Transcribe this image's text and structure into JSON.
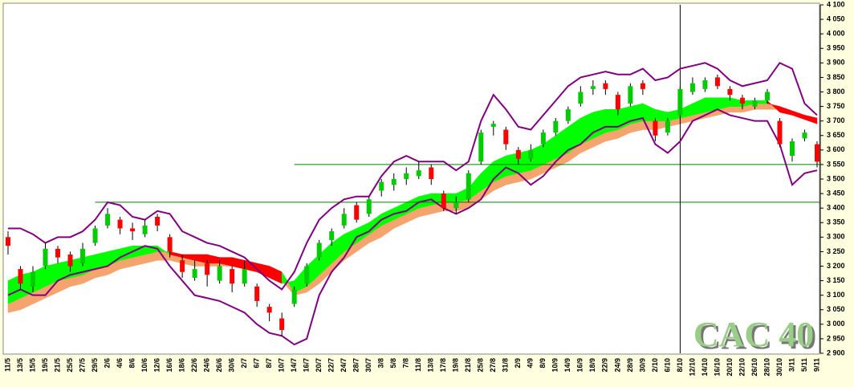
{
  "chart_data": {
    "type": "candlestick",
    "categories": [
      "11/5",
      "13/5",
      "15/5",
      "19/5",
      "21/5",
      "25/5",
      "27/5",
      "29/5",
      "2/6",
      "4/6",
      "8/6",
      "10/6",
      "12/6",
      "16/6",
      "18/6",
      "22/6",
      "24/6",
      "26/6",
      "30/6",
      "2/7",
      "6/7",
      "8/7",
      "10/7",
      "14/7",
      "16/7",
      "20/7",
      "22/7",
      "24/7",
      "28/7",
      "30/7",
      "3/8",
      "5/8",
      "7/8",
      "11/8",
      "13/8",
      "17/8",
      "19/8",
      "21/8",
      "25/8",
      "27/8",
      "31/8",
      "2/9",
      "4/9",
      "8/9",
      "10/9",
      "14/9",
      "16/9",
      "18/9",
      "22/9",
      "24/9",
      "28/9",
      "30/9",
      "2/10",
      "6/10",
      "8/10",
      "12/10",
      "14/10",
      "16/10",
      "20/10",
      "22/10",
      "26/10",
      "28/10",
      "30/10",
      "3/11",
      "5/11",
      "9/11"
    ],
    "ohlc": [
      [
        3300,
        3320,
        3240,
        3270
      ],
      [
        3190,
        3200,
        3120,
        3140
      ],
      [
        3130,
        3200,
        3110,
        3180
      ],
      [
        3200,
        3280,
        3190,
        3260
      ],
      [
        3260,
        3270,
        3210,
        3230
      ],
      [
        3240,
        3250,
        3180,
        3200
      ],
      [
        3210,
        3280,
        3200,
        3260
      ],
      [
        3280,
        3340,
        3270,
        3330
      ],
      [
        3340,
        3400,
        3330,
        3380
      ],
      [
        3360,
        3370,
        3310,
        3330
      ],
      [
        3330,
        3350,
        3290,
        3320
      ],
      [
        3310,
        3360,
        3300,
        3340
      ],
      [
        3370,
        3380,
        3320,
        3340
      ],
      [
        3300,
        3310,
        3230,
        3250
      ],
      [
        3220,
        3240,
        3160,
        3180
      ],
      [
        3160,
        3220,
        3150,
        3190
      ],
      [
        3210,
        3220,
        3130,
        3170
      ],
      [
        3150,
        3220,
        3140,
        3200
      ],
      [
        3190,
        3200,
        3110,
        3140
      ],
      [
        3140,
        3220,
        3130,
        3190
      ],
      [
        3130,
        3140,
        3060,
        3080
      ],
      [
        3060,
        3070,
        3010,
        3040
      ],
      [
        3020,
        3040,
        2960,
        2980
      ],
      [
        3070,
        3130,
        3060,
        3120
      ],
      [
        3140,
        3210,
        3130,
        3200
      ],
      [
        3230,
        3290,
        3220,
        3280
      ],
      [
        3290,
        3330,
        3270,
        3320
      ],
      [
        3340,
        3400,
        3330,
        3380
      ],
      [
        3410,
        3420,
        3350,
        3360
      ],
      [
        3380,
        3440,
        3370,
        3430
      ],
      [
        3460,
        3500,
        3440,
        3490
      ],
      [
        3480,
        3520,
        3460,
        3500
      ],
      [
        3500,
        3540,
        3480,
        3520
      ],
      [
        3510,
        3560,
        3500,
        3530
      ],
      [
        3540,
        3550,
        3480,
        3500
      ],
      [
        3450,
        3460,
        3390,
        3400
      ],
      [
        3400,
        3440,
        3380,
        3420
      ],
      [
        3430,
        3530,
        3420,
        3520
      ],
      [
        3560,
        3670,
        3550,
        3660
      ],
      [
        3680,
        3700,
        3650,
        3690
      ],
      [
        3670,
        3680,
        3600,
        3620
      ],
      [
        3600,
        3610,
        3550,
        3570
      ],
      [
        3570,
        3620,
        3560,
        3600
      ],
      [
        3620,
        3670,
        3610,
        3660
      ],
      [
        3660,
        3710,
        3650,
        3700
      ],
      [
        3700,
        3750,
        3690,
        3740
      ],
      [
        3760,
        3820,
        3750,
        3800
      ],
      [
        3810,
        3840,
        3790,
        3820
      ],
      [
        3830,
        3840,
        3790,
        3810
      ],
      [
        3790,
        3800,
        3720,
        3740
      ],
      [
        3760,
        3830,
        3750,
        3820
      ],
      [
        3830,
        3840,
        3790,
        3810
      ],
      [
        3700,
        3710,
        3630,
        3650
      ],
      [
        3660,
        3710,
        3650,
        3700
      ],
      [
        3720,
        3820,
        3710,
        3810
      ],
      [
        3800,
        3850,
        3790,
        3830
      ],
      [
        3810,
        3850,
        3800,
        3840
      ],
      [
        3850,
        3860,
        3810,
        3820
      ],
      [
        3810,
        3820,
        3770,
        3790
      ],
      [
        3780,
        3790,
        3740,
        3760
      ],
      [
        3750,
        3780,
        3740,
        3770
      ],
      [
        3770,
        3810,
        3760,
        3800
      ],
      [
        3700,
        3710,
        3610,
        3620
      ],
      [
        3580,
        3640,
        3560,
        3630
      ],
      [
        3640,
        3670,
        3630,
        3660
      ],
      [
        3620,
        3630,
        3540,
        3560
      ]
    ],
    "upper_band": [
      3330,
      3330,
      3310,
      3280,
      3300,
      3300,
      3320,
      3360,
      3420,
      3410,
      3370,
      3360,
      3390,
      3380,
      3320,
      3300,
      3280,
      3270,
      3250,
      3230,
      3190,
      3150,
      3120,
      3180,
      3280,
      3360,
      3400,
      3430,
      3440,
      3440,
      3510,
      3560,
      3580,
      3560,
      3560,
      3560,
      3530,
      3560,
      3700,
      3790,
      3740,
      3680,
      3670,
      3720,
      3770,
      3820,
      3850,
      3860,
      3870,
      3860,
      3860,
      3880,
      3840,
      3850,
      3880,
      3890,
      3900,
      3880,
      3840,
      3820,
      3830,
      3840,
      3900,
      3880,
      3760,
      3720
    ],
    "lower_band": [
      3100,
      3120,
      3100,
      3100,
      3150,
      3170,
      3180,
      3190,
      3200,
      3230,
      3250,
      3270,
      3260,
      3200,
      3150,
      3100,
      3090,
      3080,
      3060,
      3040,
      3000,
      2970,
      2960,
      2930,
      2950,
      3100,
      3180,
      3230,
      3300,
      3320,
      3360,
      3380,
      3390,
      3420,
      3430,
      3400,
      3380,
      3400,
      3430,
      3500,
      3540,
      3520,
      3480,
      3510,
      3560,
      3600,
      3620,
      3660,
      3680,
      3680,
      3700,
      3710,
      3620,
      3590,
      3630,
      3700,
      3720,
      3740,
      3720,
      3710,
      3700,
      3700,
      3620,
      3480,
      3520,
      3530
    ],
    "ma_fast": [
      3150,
      3170,
      3180,
      3200,
      3210,
      3220,
      3230,
      3240,
      3250,
      3260,
      3270,
      3270,
      3270,
      3240,
      3230,
      3220,
      3210,
      3210,
      3200,
      3190,
      3180,
      3160,
      3140,
      3150,
      3200,
      3240,
      3280,
      3310,
      3330,
      3350,
      3380,
      3400,
      3420,
      3440,
      3450,
      3450,
      3450,
      3470,
      3520,
      3560,
      3580,
      3590,
      3600,
      3620,
      3650,
      3680,
      3710,
      3730,
      3740,
      3740,
      3750,
      3760,
      3740,
      3730,
      3740,
      3760,
      3780,
      3780,
      3780,
      3770,
      3770,
      3770,
      3730,
      3720,
      3705,
      3690
    ],
    "ma_mid": [
      3070,
      3090,
      3110,
      3130,
      3150,
      3160,
      3170,
      3190,
      3200,
      3220,
      3230,
      3240,
      3250,
      3250,
      3240,
      3240,
      3240,
      3230,
      3230,
      3220,
      3210,
      3200,
      3180,
      3110,
      3130,
      3170,
      3210,
      3250,
      3280,
      3310,
      3340,
      3360,
      3380,
      3400,
      3410,
      3420,
      3420,
      3430,
      3460,
      3490,
      3510,
      3520,
      3530,
      3550,
      3570,
      3590,
      3620,
      3640,
      3660,
      3670,
      3690,
      3700,
      3700,
      3700,
      3710,
      3720,
      3730,
      3740,
      3750,
      3750,
      3760,
      3760,
      3750,
      3735,
      3720,
      3710
    ],
    "ma_slow": [
      3040,
      3050,
      3070,
      3090,
      3110,
      3130,
      3140,
      3160,
      3170,
      3190,
      3200,
      3210,
      3220,
      3220,
      3210,
      3200,
      3200,
      3200,
      3200,
      3190,
      3180,
      3170,
      3150,
      3100,
      3110,
      3140,
      3180,
      3220,
      3250,
      3280,
      3300,
      3330,
      3350,
      3370,
      3380,
      3390,
      3390,
      3400,
      3430,
      3460,
      3480,
      3490,
      3500,
      3520,
      3540,
      3560,
      3590,
      3610,
      3630,
      3640,
      3660,
      3670,
      3670,
      3680,
      3690,
      3700,
      3710,
      3720,
      3730,
      3730,
      3740,
      3740,
      3740,
      3730,
      3720,
      3710
    ],
    "up_color": "#00cc00",
    "down_color": "#ff0000",
    "band_color": "#800080",
    "ribbon_up_color": "#00ff00",
    "ribbon_down_color": "#ff0000",
    "ribbon_base_color": "#f4a46c",
    "hlines": [
      {
        "value": 3550,
        "from": "14/7",
        "color": "#008000"
      },
      {
        "value": 3420,
        "from": "29/5",
        "color": "#008000"
      }
    ],
    "vline": "8/10",
    "watermark": "CAC 40",
    "ylim": [
      2900,
      4100
    ],
    "yticks": [
      {
        "value": 2900,
        "label": "2 900"
      },
      {
        "value": 2950,
        "label": "2 950"
      },
      {
        "value": 3000,
        "label": "3 000"
      },
      {
        "value": 3050,
        "label": "3 050"
      },
      {
        "value": 3100,
        "label": "3 100"
      },
      {
        "value": 3150,
        "label": "3 150"
      },
      {
        "value": 3200,
        "label": "3 200"
      },
      {
        "value": 3250,
        "label": "3 250"
      },
      {
        "value": 3300,
        "label": "3 300"
      },
      {
        "value": 3350,
        "label": "3 350"
      },
      {
        "value": 3400,
        "label": "3 400"
      },
      {
        "value": 3450,
        "label": "3 450"
      },
      {
        "value": 3500,
        "label": "3 500"
      },
      {
        "value": 3550,
        "label": "3 550"
      },
      {
        "value": 3600,
        "label": "3 600"
      },
      {
        "value": 3650,
        "label": "3 650"
      },
      {
        "value": 3700,
        "label": "3 700"
      },
      {
        "value": 3750,
        "label": "3 750"
      },
      {
        "value": 3800,
        "label": "3 800"
      },
      {
        "value": 3850,
        "label": "3 850"
      },
      {
        "value": 3900,
        "label": "3 900"
      },
      {
        "value": 3950,
        "label": "3 950"
      },
      {
        "value": 4000,
        "label": "4 000"
      },
      {
        "value": 4050,
        "label": "4 050"
      },
      {
        "value": 4100,
        "label": "4 100"
      }
    ]
  }
}
